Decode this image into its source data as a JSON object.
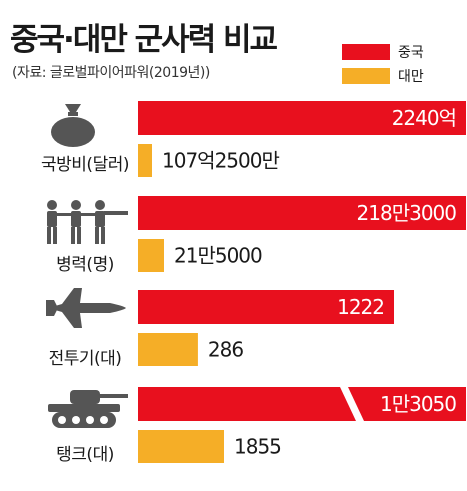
{
  "title": "중국·대만 군사력 비교",
  "source": "(자료: 글로벌파이어파워(2019년))",
  "legend": [
    {
      "label": "중국",
      "color": "#e8101e"
    },
    {
      "label": "대만",
      "color": "#f5ae27"
    }
  ],
  "icons": [
    "money-bag-icon",
    "soldiers-icon",
    "fighter-jet-icon",
    "tank-icon"
  ],
  "chart_data": {
    "type": "bar",
    "orientation": "horizontal",
    "categories": [
      "국방비(달러)",
      "병력(명)",
      "전투기(대)",
      "탱크(대)"
    ],
    "series": [
      {
        "name": "중국",
        "values": [
          224000000000,
          2183000,
          1222,
          13050
        ],
        "labels": [
          "2240억",
          "218만3000",
          "1222",
          "1만3050"
        ]
      },
      {
        "name": "대만",
        "values": [
          10725000000,
          215000,
          286,
          1855
        ],
        "labels": [
          "107억2500만",
          "21만5000",
          "286",
          "1855"
        ]
      }
    ],
    "axis_break": true,
    "legend_position": "top-right",
    "grid": false
  }
}
